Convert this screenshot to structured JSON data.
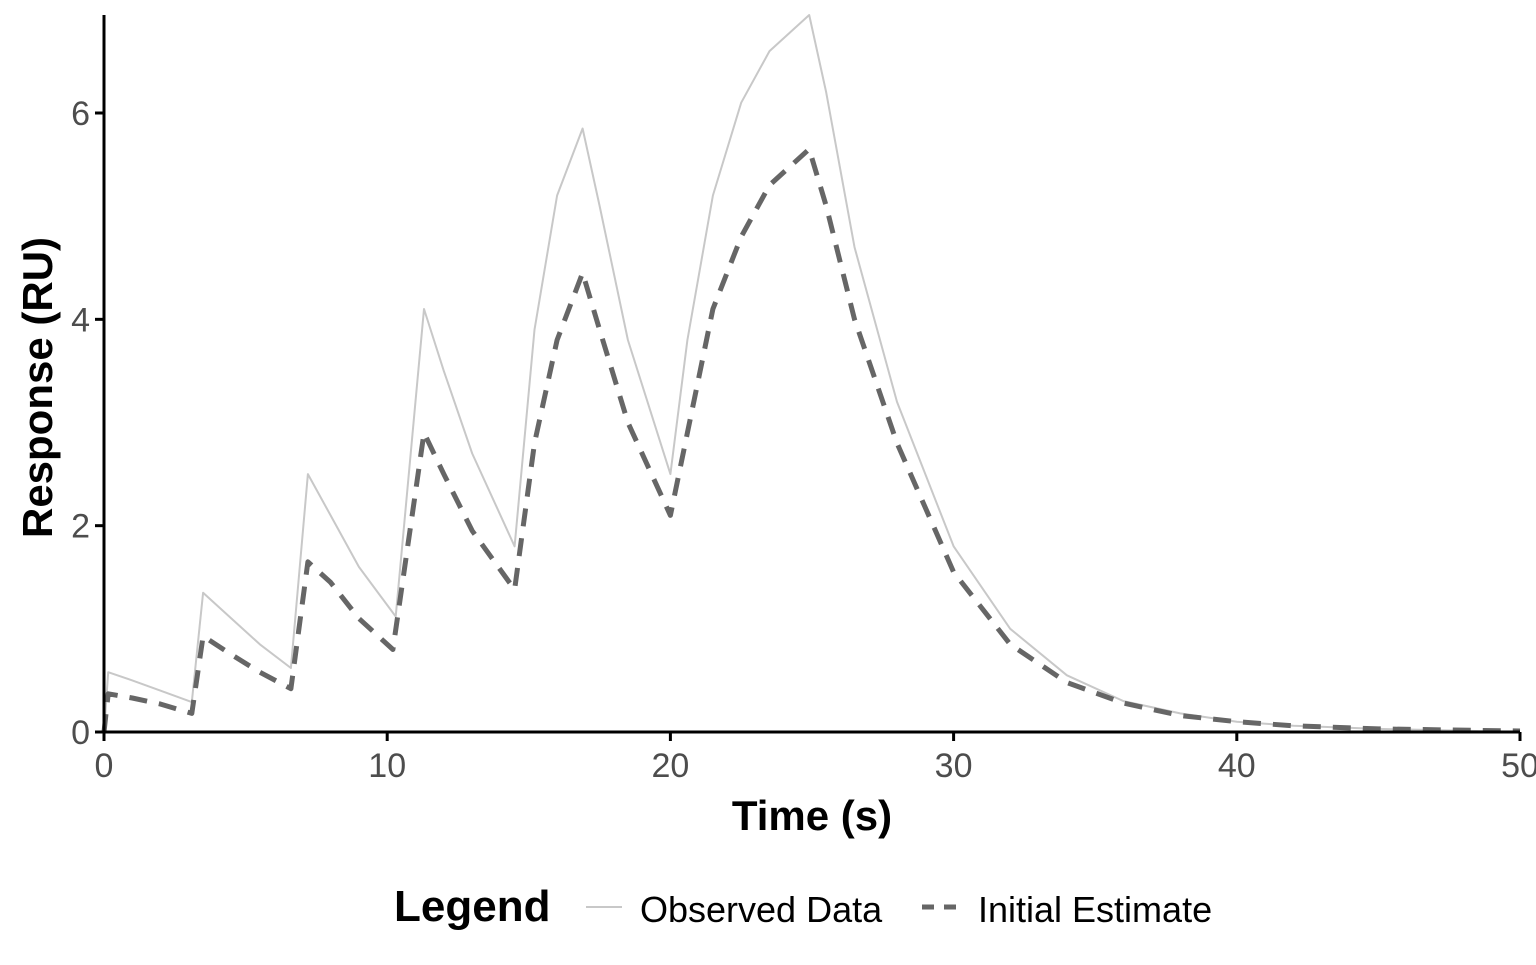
{
  "chart_data": {
    "type": "line",
    "title": "",
    "xlabel": "Time (s)",
    "ylabel": "Response (RU)",
    "xlim": [
      0,
      50
    ],
    "ylim": [
      0,
      6.95
    ],
    "x_ticks": [
      0,
      10,
      20,
      30,
      40,
      50
    ],
    "y_ticks": [
      0,
      2,
      4,
      6
    ],
    "x_tick_labels": [
      "0",
      "10",
      "20",
      "30",
      "40",
      "50"
    ],
    "y_tick_labels": [
      "0",
      "2",
      "4",
      "6"
    ],
    "grid": false,
    "legend": {
      "title": "Legend",
      "position": "bottom",
      "entries": [
        "Observed Data",
        "Initial Estimate"
      ]
    },
    "series": [
      {
        "name": "Observed Data",
        "style": "solid",
        "color": "#c8c8c8",
        "points": [
          [
            0.0,
            0.0
          ],
          [
            0.15,
            0.58
          ],
          [
            1.0,
            0.5
          ],
          [
            2.0,
            0.4
          ],
          [
            3.1,
            0.29
          ],
          [
            3.5,
            1.35
          ],
          [
            4.5,
            1.1
          ],
          [
            5.5,
            0.85
          ],
          [
            6.6,
            0.62
          ],
          [
            7.2,
            2.5
          ],
          [
            8.0,
            2.1
          ],
          [
            9.0,
            1.6
          ],
          [
            10.3,
            1.12
          ],
          [
            11.3,
            4.1
          ],
          [
            12.0,
            3.5
          ],
          [
            13.0,
            2.7
          ],
          [
            14.5,
            1.8
          ],
          [
            15.2,
            3.9
          ],
          [
            16.0,
            5.2
          ],
          [
            16.9,
            5.85
          ],
          [
            17.5,
            5.1
          ],
          [
            18.5,
            3.8
          ],
          [
            20.0,
            2.5
          ],
          [
            20.6,
            3.8
          ],
          [
            21.5,
            5.2
          ],
          [
            22.5,
            6.1
          ],
          [
            23.5,
            6.6
          ],
          [
            24.9,
            6.95
          ],
          [
            25.5,
            6.2
          ],
          [
            26.5,
            4.7
          ],
          [
            28.0,
            3.2
          ],
          [
            30.0,
            1.8
          ],
          [
            32.0,
            1.0
          ],
          [
            34.0,
            0.55
          ],
          [
            36.0,
            0.3
          ],
          [
            38.0,
            0.18
          ],
          [
            40.0,
            0.1
          ],
          [
            42.0,
            0.06
          ],
          [
            45.0,
            0.03
          ],
          [
            50.0,
            0.0
          ]
        ]
      },
      {
        "name": "Initial Estimate",
        "style": "dashed",
        "color": "#666666",
        "points": [
          [
            0.0,
            0.0
          ],
          [
            0.15,
            0.37
          ],
          [
            1.0,
            0.33
          ],
          [
            2.0,
            0.27
          ],
          [
            3.1,
            0.18
          ],
          [
            3.5,
            0.93
          ],
          [
            4.5,
            0.75
          ],
          [
            5.5,
            0.58
          ],
          [
            6.6,
            0.42
          ],
          [
            7.2,
            1.65
          ],
          [
            8.0,
            1.45
          ],
          [
            9.0,
            1.1
          ],
          [
            10.2,
            0.8
          ],
          [
            11.3,
            2.9
          ],
          [
            12.0,
            2.5
          ],
          [
            13.0,
            1.95
          ],
          [
            14.5,
            1.38
          ],
          [
            15.2,
            2.8
          ],
          [
            16.0,
            3.8
          ],
          [
            16.9,
            4.45
          ],
          [
            17.5,
            3.9
          ],
          [
            18.5,
            3.0
          ],
          [
            20.0,
            2.1
          ],
          [
            20.6,
            2.9
          ],
          [
            21.5,
            4.1
          ],
          [
            22.5,
            4.8
          ],
          [
            23.5,
            5.3
          ],
          [
            24.9,
            5.65
          ],
          [
            25.5,
            5.1
          ],
          [
            26.5,
            4.0
          ],
          [
            28.0,
            2.8
          ],
          [
            30.0,
            1.55
          ],
          [
            32.0,
            0.85
          ],
          [
            34.0,
            0.48
          ],
          [
            36.0,
            0.28
          ],
          [
            38.0,
            0.16
          ],
          [
            40.0,
            0.1
          ],
          [
            42.0,
            0.06
          ],
          [
            45.0,
            0.03
          ],
          [
            50.0,
            0.01
          ]
        ]
      }
    ]
  }
}
